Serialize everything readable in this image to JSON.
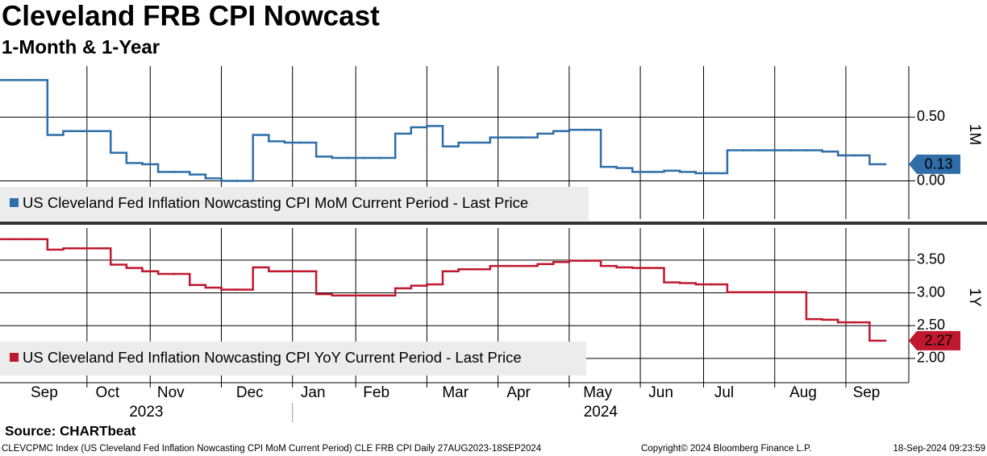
{
  "title": "Cleveland FRB CPI Nowcast",
  "subtitle": "1-Month & 1-Year",
  "source": "Source: CHARTbeat",
  "footer": {
    "left": "CLEVCPMC Index (US Cleveland Fed Inflation Nowcasting CPI MoM Current Period) CLE FRB CPI  Daily 27AUG2023-18SEP2024",
    "center": "Copyright© 2024 Bloomberg Finance L.P.",
    "right": "18-Sep-2024 09:23:59"
  },
  "chart_data": [
    {
      "type": "line",
      "y_label": "1M",
      "ylim": [
        -0.3,
        0.9
      ],
      "yticks": [
        {
          "value": 0,
          "label": "0.00"
        },
        {
          "value": 0.5,
          "label": "0.50"
        }
      ],
      "series": [
        {
          "name": "US Cleveland Fed Inflation Nowcasting CPI MoM Current Period - Last Price",
          "color": "#2f6ea8",
          "values": [
            0.79,
            0.79,
            0.79,
            0.36,
            0.39,
            0.39,
            0.39,
            0.22,
            0.14,
            0.13,
            0.07,
            0.07,
            0.05,
            0.02,
            0.0,
            0.0,
            0.36,
            0.31,
            0.3,
            0.3,
            0.19,
            0.18,
            0.18,
            0.18,
            0.18,
            0.37,
            0.42,
            0.43,
            0.27,
            0.3,
            0.3,
            0.34,
            0.34,
            0.34,
            0.37,
            0.39,
            0.4,
            0.4,
            0.11,
            0.1,
            0.07,
            0.07,
            0.08,
            0.07,
            0.06,
            0.06,
            0.24,
            0.24,
            0.24,
            0.24,
            0.24,
            0.24,
            0.23,
            0.2,
            0.2,
            0.13
          ]
        }
      ]
    },
    {
      "type": "line",
      "y_label": "1Y",
      "ylim": [
        1.63,
        3.99
      ],
      "yticks": [
        {
          "value": 2,
          "label": "2.00"
        },
        {
          "value": 2.5,
          "label": "2.50"
        },
        {
          "value": 3,
          "label": "3.00"
        },
        {
          "value": 3.5,
          "label": "3.50"
        }
      ],
      "categories": [
        null,
        null,
        null,
        "Sep",
        null,
        null,
        null,
        "Oct",
        null,
        null,
        null,
        "Nov",
        null,
        null,
        null,
        null,
        "Dec",
        null,
        null,
        null,
        "Jan",
        null,
        null,
        null,
        "Feb",
        null,
        null,
        null,
        null,
        "Mar",
        null,
        null,
        null,
        "Apr",
        null,
        null,
        null,
        null,
        "May",
        null,
        null,
        null,
        "Jun",
        null,
        null,
        null,
        "Jul",
        null,
        null,
        null,
        null,
        "Aug",
        null,
        null,
        null,
        "Sep"
      ],
      "year_labels": [
        "2023",
        "2024"
      ],
      "series": [
        {
          "name": "US Cleveland Fed Inflation Nowcasting CPI YoY Current Period - Last Price",
          "color": "#c0182f",
          "values": [
            3.82,
            3.82,
            3.82,
            3.66,
            3.68,
            3.68,
            3.68,
            3.43,
            3.38,
            3.33,
            3.29,
            3.29,
            3.12,
            3.08,
            3.05,
            3.05,
            3.39,
            3.33,
            3.33,
            3.33,
            2.98,
            2.96,
            2.96,
            2.96,
            2.96,
            3.07,
            3.11,
            3.13,
            3.33,
            3.36,
            3.36,
            3.41,
            3.41,
            3.41,
            3.44,
            3.47,
            3.49,
            3.49,
            3.41,
            3.39,
            3.38,
            3.38,
            3.16,
            3.15,
            3.13,
            3.13,
            3.01,
            3.01,
            3.01,
            3.01,
            3.01,
            2.6,
            2.59,
            2.55,
            2.55,
            2.27
          ]
        }
      ]
    }
  ]
}
